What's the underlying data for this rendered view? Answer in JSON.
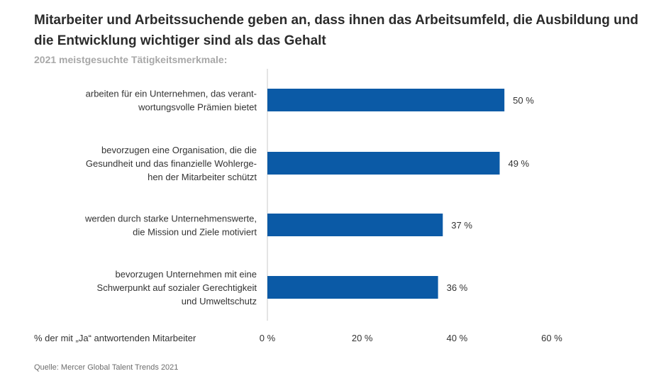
{
  "chart_data": {
    "type": "bar",
    "orientation": "horizontal",
    "title": "Mitarbeiter und Arbeitssuchende geben an, dass ihnen das Arbeitsumfeld, die Ausbildung und die Entwicklung wichtiger sind als das Gehalt",
    "subtitle": "2021 meistgesuchte Tätigkeitsmerkmale:",
    "xlabel": "% der mit „Ja“ antwortenden Mitarbeiter",
    "xlim": [
      0,
      60
    ],
    "x_ticks": [
      0,
      20,
      40,
      60
    ],
    "x_tick_labels": [
      "0 %",
      "20 %",
      "40 %",
      "60 %"
    ],
    "categories": [
      [
        "arbeiten für ein Unternehmen, das verant-",
        "wortungsvolle Prämien bietet"
      ],
      [
        "bevorzugen eine Organisation, die die",
        "Gesundheit und das finanzielle Wohlerge-",
        "hen der Mitarbeiter schützt"
      ],
      [
        "werden durch starke Unternehmenswerte,",
        "die Mission und Ziele motiviert"
      ],
      [
        "bevorzugen Unternehmen mit eine",
        "Schwerpunkt auf sozialer Gerechtigkeit",
        "und Umweltschutz"
      ]
    ],
    "values": [
      50,
      49,
      37,
      36
    ],
    "value_labels": [
      "50 %",
      "49 %",
      "37 %",
      "36 %"
    ],
    "bar_color": "#0b5aa6",
    "axis_line_color": "#c8c8c8",
    "grid": false,
    "source": "Quelle: Mercer Global Talent Trends 2021"
  }
}
